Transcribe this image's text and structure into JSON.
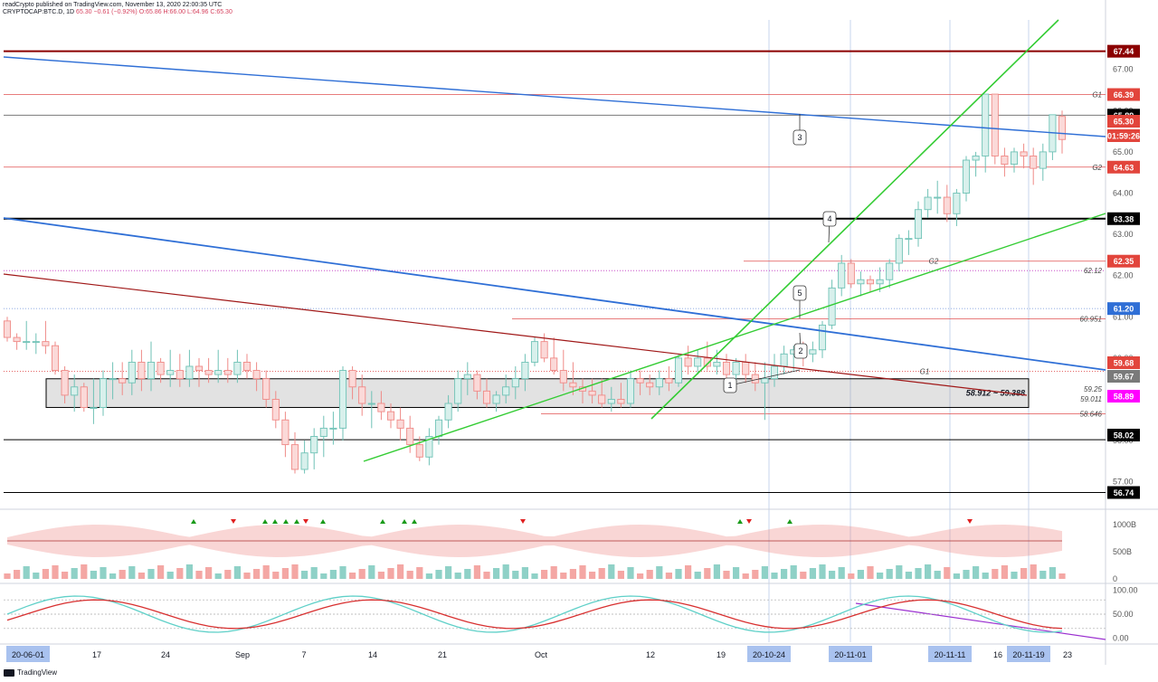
{
  "header": {
    "published": "readCrypto published on TradingView.com, November 13, 2020 22:00:35 UTC",
    "symbol": "CRYPTOCAP:BTC.D, 1D",
    "quote": "65.30 −0.61 (−0.92%) O:65.86 H:66.00 L:64.96 C:65.30"
  },
  "footer": {
    "brand": "TradingView"
  },
  "colors": {
    "up": "#6fc2b6",
    "down": "#ef8a87",
    "accent": "#2962ff"
  },
  "chart_data": [
    {
      "type": "candlestick",
      "symbol": "CRYPTOCAP:BTC.D",
      "interval": "1D",
      "ylim": [
        56.4,
        68.2
      ],
      "price_ticks": [
        "67.00",
        "66.00",
        "65.00",
        "64.00",
        "63.00",
        "62.00",
        "61.00",
        "60.00",
        "59.00",
        "58.00",
        "57.00"
      ],
      "price_tick_values": [
        67,
        66,
        65,
        64,
        63,
        62,
        61,
        60,
        59,
        58,
        57
      ],
      "x_ticks": [
        "20-06-01",
        "17",
        "24",
        "Sep",
        "7",
        "14",
        "21",
        "Oct",
        "12",
        "19",
        "20-10-24",
        "20-11-01",
        "20-11-11",
        "16",
        "20-11-19",
        "23"
      ],
      "highlighted_dates": [
        "20-06-01",
        "20-10-24",
        "20-11-01",
        "20-11-11",
        "20-11-19"
      ],
      "candles": [
        [
          60.9,
          61.0,
          60.4,
          60.5
        ],
        [
          60.5,
          60.6,
          60.2,
          60.4
        ],
        [
          60.4,
          60.9,
          60.2,
          60.4
        ],
        [
          60.4,
          60.6,
          60.1,
          60.4
        ],
        [
          60.4,
          60.9,
          60.1,
          60.3
        ],
        [
          60.3,
          60.4,
          59.6,
          59.7
        ],
        [
          59.7,
          59.8,
          58.9,
          59.1
        ],
        [
          59.1,
          59.6,
          58.7,
          59.3
        ],
        [
          59.3,
          59.4,
          58.7,
          58.8
        ],
        [
          58.8,
          59.5,
          58.4,
          58.8
        ],
        [
          58.8,
          59.7,
          58.6,
          59.5
        ],
        [
          59.5,
          59.9,
          59.0,
          59.5
        ],
        [
          59.5,
          59.9,
          59.1,
          59.4
        ],
        [
          59.4,
          60.2,
          59.1,
          59.9
        ],
        [
          59.9,
          60.2,
          59.2,
          59.5
        ],
        [
          59.5,
          60.4,
          59.2,
          59.9
        ],
        [
          59.9,
          60.0,
          59.4,
          59.6
        ],
        [
          59.6,
          60.2,
          59.3,
          59.7
        ],
        [
          59.7,
          60.1,
          59.3,
          59.5
        ],
        [
          59.5,
          60.2,
          59.3,
          59.8
        ],
        [
          59.8,
          60.0,
          59.3,
          59.7
        ],
        [
          59.7,
          60.0,
          59.4,
          59.6
        ],
        [
          59.6,
          60.2,
          59.4,
          59.7
        ],
        [
          59.7,
          60.0,
          59.4,
          59.6
        ],
        [
          59.6,
          60.2,
          59.4,
          59.9
        ],
        [
          59.9,
          60.1,
          59.5,
          59.7
        ],
        [
          59.7,
          59.9,
          59.2,
          59.5
        ],
        [
          59.5,
          59.7,
          58.8,
          59.0
        ],
        [
          59.0,
          59.2,
          58.3,
          58.5
        ],
        [
          58.5,
          58.7,
          57.6,
          57.9
        ],
        [
          57.9,
          58.2,
          57.2,
          57.3
        ],
        [
          57.3,
          58.0,
          57.2,
          57.7
        ],
        [
          57.7,
          58.3,
          57.3,
          58.1
        ],
        [
          58.1,
          58.6,
          57.6,
          58.3
        ],
        [
          58.3,
          58.7,
          57.9,
          58.3
        ],
        [
          58.3,
          59.8,
          58.0,
          59.7
        ],
        [
          59.7,
          59.8,
          59.0,
          59.3
        ],
        [
          59.3,
          59.6,
          58.6,
          58.9
        ],
        [
          58.9,
          59.2,
          58.3,
          58.9
        ],
        [
          58.9,
          59.2,
          58.5,
          58.7
        ],
        [
          58.7,
          58.9,
          58.3,
          58.5
        ],
        [
          58.5,
          58.8,
          58.0,
          58.3
        ],
        [
          58.3,
          58.6,
          57.7,
          57.9
        ],
        [
          57.9,
          58.1,
          57.5,
          57.6
        ],
        [
          57.6,
          58.3,
          57.4,
          58.1
        ],
        [
          58.1,
          58.6,
          57.9,
          58.5
        ],
        [
          58.5,
          59.1,
          58.3,
          58.9
        ],
        [
          58.9,
          59.7,
          58.7,
          59.5
        ],
        [
          59.5,
          59.9,
          59.1,
          59.6
        ],
        [
          59.6,
          59.7,
          59.0,
          59.2
        ],
        [
          59.2,
          59.5,
          58.8,
          58.9
        ],
        [
          58.9,
          59.2,
          58.7,
          59.1
        ],
        [
          59.1,
          59.6,
          58.9,
          59.3
        ],
        [
          59.3,
          59.8,
          59.0,
          59.5
        ],
        [
          59.5,
          60.1,
          59.2,
          59.9
        ],
        [
          59.9,
          60.5,
          59.8,
          60.4
        ],
        [
          60.4,
          60.6,
          59.9,
          60.0
        ],
        [
          60.0,
          60.5,
          59.6,
          59.7
        ],
        [
          59.7,
          60.2,
          59.2,
          59.4
        ],
        [
          59.4,
          59.9,
          59.1,
          59.3
        ],
        [
          59.3,
          59.5,
          58.9,
          59.2
        ],
        [
          59.2,
          59.5,
          58.9,
          59.1
        ],
        [
          59.1,
          59.5,
          58.8,
          58.9
        ],
        [
          58.9,
          59.3,
          58.7,
          59.0
        ],
        [
          59.0,
          59.4,
          58.8,
          58.9
        ],
        [
          58.9,
          59.7,
          58.8,
          59.5
        ],
        [
          59.5,
          59.7,
          59.1,
          59.4
        ],
        [
          59.4,
          59.6,
          59.1,
          59.3
        ],
        [
          59.3,
          59.7,
          59.1,
          59.5
        ],
        [
          59.5,
          59.8,
          59.2,
          59.4
        ],
        [
          59.4,
          60.1,
          59.3,
          60.0
        ],
        [
          60.0,
          60.3,
          59.6,
          59.8
        ],
        [
          59.8,
          60.2,
          59.6,
          60.0
        ],
        [
          60.0,
          60.4,
          59.7,
          59.8
        ],
        [
          59.8,
          60.2,
          59.6,
          59.9
        ],
        [
          59.9,
          60.1,
          59.4,
          59.6
        ],
        [
          59.6,
          60.0,
          59.3,
          59.9
        ],
        [
          59.9,
          60.1,
          59.4,
          59.6
        ],
        [
          59.6,
          59.9,
          59.2,
          59.4
        ],
        [
          59.4,
          59.9,
          58.5,
          59.5
        ],
        [
          59.5,
          60.1,
          59.3,
          59.8
        ],
        [
          59.8,
          60.3,
          59.6,
          60.1
        ],
        [
          60.1,
          60.3,
          59.7,
          60.2
        ],
        [
          60.2,
          60.4,
          59.8,
          60.1
        ],
        [
          60.1,
          60.4,
          59.9,
          60.2
        ],
        [
          60.2,
          60.9,
          60.0,
          60.8
        ],
        [
          60.8,
          61.9,
          60.7,
          61.7
        ],
        [
          61.7,
          62.5,
          61.5,
          62.3
        ],
        [
          62.3,
          62.4,
          61.7,
          61.8
        ],
        [
          61.8,
          62.1,
          61.5,
          61.9
        ],
        [
          61.9,
          62.0,
          61.6,
          61.8
        ],
        [
          61.8,
          62.2,
          61.6,
          61.9
        ],
        [
          61.9,
          62.4,
          61.7,
          62.3
        ],
        [
          62.3,
          63.0,
          62.1,
          62.9
        ],
        [
          62.9,
          63.1,
          62.5,
          62.9
        ],
        [
          62.9,
          63.8,
          62.7,
          63.6
        ],
        [
          63.6,
          64.1,
          63.4,
          63.9
        ],
        [
          63.9,
          64.3,
          63.5,
          63.9
        ],
        [
          63.9,
          64.2,
          63.3,
          63.5
        ],
        [
          63.5,
          64.1,
          63.2,
          64.0
        ],
        [
          64.0,
          64.9,
          63.8,
          64.8
        ],
        [
          64.8,
          65.0,
          64.4,
          64.9
        ],
        [
          64.9,
          66.4,
          64.5,
          66.4
        ],
        [
          66.4,
          66.4,
          64.7,
          64.9
        ],
        [
          64.9,
          65.1,
          64.4,
          64.7
        ],
        [
          64.7,
          65.1,
          64.5,
          65.0
        ],
        [
          65.0,
          65.2,
          64.6,
          64.9
        ],
        [
          64.9,
          65.1,
          64.2,
          64.6
        ],
        [
          64.6,
          65.2,
          64.3,
          65.0
        ],
        [
          65.0,
          65.9,
          64.8,
          65.9
        ],
        [
          65.86,
          66.0,
          64.96,
          65.3
        ]
      ],
      "price_labels": [
        {
          "text": "67.44",
          "value": 67.44,
          "kind": "maroon"
        },
        {
          "text": "66.39",
          "value": 66.39,
          "kind": "red"
        },
        {
          "text": "65.89",
          "value": 65.89,
          "kind": "black"
        },
        {
          "text": "65.30",
          "value": 65.3,
          "kind": "red"
        },
        {
          "text": "01:59:26",
          "value": 65.0,
          "kind": "red"
        },
        {
          "text": "64.63",
          "value": 64.63,
          "kind": "red"
        },
        {
          "text": "63.38",
          "value": 63.38,
          "kind": "black"
        },
        {
          "text": "62.35",
          "value": 62.35,
          "kind": "red"
        },
        {
          "text": "61.20",
          "value": 61.2,
          "kind": "blue"
        },
        {
          "text": "59.68",
          "value": 59.68,
          "kind": "red"
        },
        {
          "text": "59.67",
          "value": 59.67,
          "kind": "gray"
        },
        {
          "text": "58.89",
          "value": 58.89,
          "kind": "magenta"
        },
        {
          "text": "58.02",
          "value": 58.02,
          "kind": "black"
        },
        {
          "text": "56.74",
          "value": 56.74,
          "kind": "black"
        }
      ],
      "levels": [
        {
          "value": 67.44,
          "style": "maroon"
        },
        {
          "value": 66.39,
          "style": "red"
        },
        {
          "value": 65.89,
          "style": "gray"
        },
        {
          "value": 64.63,
          "style": "red"
        },
        {
          "value": 63.38,
          "style": "black"
        },
        {
          "value": 62.35,
          "style": "red"
        },
        {
          "value": 62.12,
          "style": "dotted-magenta"
        },
        {
          "value": 61.2,
          "style": "dotted-blue"
        },
        {
          "value": 60.951,
          "style": "red"
        },
        {
          "value": 59.68,
          "style": "dotted-red"
        },
        {
          "value": 58.646,
          "style": "red"
        },
        {
          "value": 58.02,
          "style": "black"
        },
        {
          "value": 56.74,
          "style": "black"
        }
      ],
      "level_notes": [
        "G1",
        "G2",
        "G2",
        "62.12",
        "60.951",
        "G1",
        "59.25",
        "59.011",
        "58.646"
      ],
      "box_label": "58.912 ~ 59.388",
      "box_range": [
        58.912,
        59.388
      ],
      "callouts": [
        "1",
        "2",
        "3",
        "4",
        "5"
      ]
    },
    {
      "type": "volume-cloud",
      "y_ticks": [
        "1000B",
        "500B",
        "0"
      ],
      "ylim": [
        0,
        1200
      ]
    },
    {
      "type": "oscillator",
      "y_ticks": [
        "100.00",
        "50.00",
        "0.00"
      ],
      "ylim": [
        -5,
        105
      ],
      "x_ticks": [
        "20-06-01",
        "17",
        "24",
        "Sep",
        "7",
        "14",
        "21",
        "Oct",
        "12",
        "19",
        "20-10-24",
        "20-11-01",
        "20-11-11",
        "16",
        "20-11-19",
        "23"
      ]
    }
  ]
}
